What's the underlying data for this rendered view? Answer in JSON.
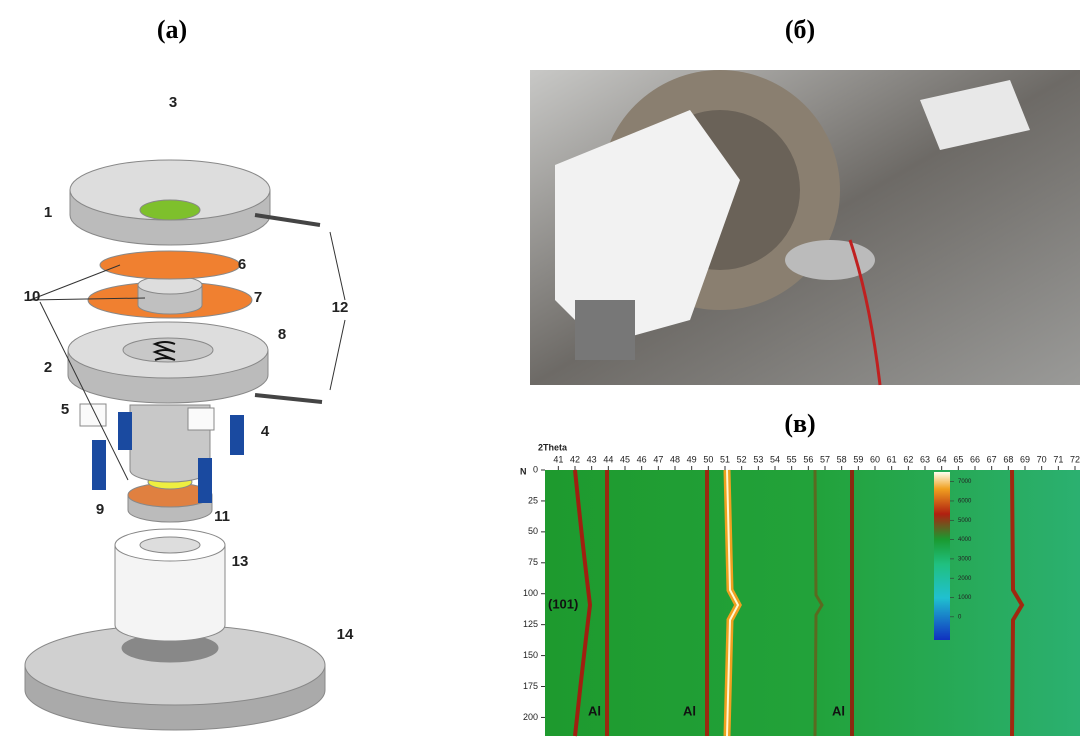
{
  "panels": [
    {
      "label": "(а)"
    },
    {
      "label": "(б)"
    },
    {
      "label": "(в)"
    }
  ],
  "diagram": {
    "callouts": [
      "1",
      "2",
      "3",
      "4",
      "5",
      "6",
      "7",
      "8",
      "9",
      "10",
      "11",
      "12",
      "13",
      "14"
    ]
  },
  "heatmap": {
    "x_label": "2Theta",
    "xlim": [
      40.2,
      72.3
    ],
    "xticks": [
      41,
      42,
      43,
      44,
      45,
      46,
      47,
      48,
      49,
      50,
      51,
      52,
      53,
      54,
      55,
      56,
      57,
      58,
      59,
      60,
      61,
      62,
      63,
      64,
      65,
      66,
      67,
      68,
      69,
      70,
      71,
      72
    ],
    "y_label": "N",
    "ylim": [
      0,
      215
    ],
    "yticks": [
      0,
      25,
      50,
      75,
      100,
      125,
      150,
      175,
      200
    ],
    "colorbar_lim": [
      -1200,
      7500
    ],
    "colorbar_ticks": [
      0,
      1000,
      2000,
      3000,
      4000,
      5000,
      6000,
      7000
    ],
    "annotations": [
      "(101)",
      "Al",
      "Al",
      "Al"
    ]
  }
}
